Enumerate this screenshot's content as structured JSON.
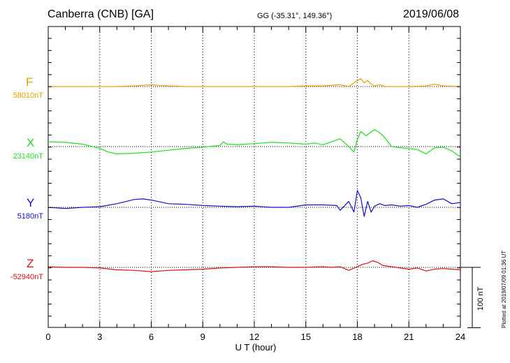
{
  "header": {
    "title": "Canberra (CNB)  [GA]",
    "coords": "GG (-35.31°, 149.36°)",
    "date": "2019/06/08"
  },
  "scale_label": "100 nT",
  "plotted_note": "Plotted at 2019/07/09 01:36 UT",
  "colors": {
    "F": "#e6a300",
    "X": "#22dd22",
    "Y": "#1010cc",
    "Z": "#dd1111"
  },
  "chart_data": {
    "type": "line",
    "xlabel": "U T (hour)",
    "xlim": [
      0,
      24
    ],
    "x_ticks": [
      "0",
      "3",
      "6",
      "9",
      "12",
      "15",
      "18",
      "21",
      "24"
    ],
    "grid": true,
    "components": [
      {
        "name": "F",
        "baseline_label": "58010nT",
        "color": "#e6a300",
        "x": [
          0,
          1,
          2,
          3,
          4,
          5,
          5.5,
          6,
          6.5,
          7,
          8,
          9,
          10,
          11,
          12,
          13,
          14,
          15,
          16,
          17,
          17.5,
          18,
          18.2,
          18.4,
          18.6,
          18.8,
          19,
          19.3,
          19.6,
          20,
          21,
          22,
          22.5,
          23,
          24
        ],
        "values": [
          0,
          0,
          0,
          0,
          0,
          1,
          2,
          3,
          2,
          1,
          0,
          0,
          0,
          0,
          0,
          0,
          0,
          1,
          1,
          3,
          0,
          10,
          13,
          6,
          10,
          4,
          1,
          3,
          0,
          0,
          0,
          1,
          4,
          1,
          0
        ]
      },
      {
        "name": "X",
        "baseline_label": "23140nT",
        "color": "#22dd22",
        "x": [
          0,
          1,
          2,
          3,
          3.5,
          4,
          5,
          6,
          7,
          8,
          9,
          10,
          10.2,
          10.4,
          11,
          12,
          13,
          14,
          15,
          15.5,
          16,
          16.5,
          17,
          17.5,
          17.8,
          18,
          18.2,
          18.5,
          18.8,
          19,
          19.2,
          19.5,
          20,
          20.5,
          21,
          21.5,
          22,
          22.5,
          23,
          23.5,
          24
        ],
        "values": [
          8,
          7,
          4,
          -3,
          -9,
          -12,
          -11,
          -9,
          -6,
          -3,
          -1,
          2,
          8,
          4,
          3,
          5,
          7,
          6,
          4,
          6,
          3,
          8,
          13,
          0,
          -9,
          12,
          25,
          18,
          24,
          28,
          25,
          18,
          0,
          -2,
          -3,
          -5,
          -12,
          -2,
          -1,
          -7,
          -17
        ]
      },
      {
        "name": "Y",
        "baseline_label": "5180nT",
        "color": "#1010cc",
        "x": [
          0,
          1,
          2,
          3,
          4,
          5,
          5.5,
          6,
          7,
          8,
          9,
          10,
          11,
          12,
          13,
          14,
          15,
          16,
          16.8,
          17,
          17.5,
          17.8,
          18,
          18.2,
          18.4,
          18.6,
          18.8,
          19,
          19.3,
          19.6,
          20,
          20.5,
          21,
          21.5,
          22,
          22.5,
          23,
          23.5,
          24
        ],
        "values": [
          0,
          -2,
          0,
          1,
          6,
          13,
          14,
          12,
          6,
          5,
          3,
          2,
          1,
          2,
          0,
          0,
          4,
          4,
          3,
          -5,
          10,
          -8,
          28,
          16,
          -15,
          10,
          -8,
          2,
          6,
          3,
          4,
          2,
          3,
          0,
          5,
          12,
          14,
          6,
          8
        ]
      },
      {
        "name": "Z",
        "baseline_label": "-52940nT",
        "color": "#dd1111",
        "x": [
          0,
          1,
          2,
          3,
          4,
          5,
          6,
          7,
          8,
          9,
          10,
          11,
          12,
          13,
          14,
          15,
          16,
          16.5,
          17,
          17.5,
          18,
          18.3,
          18.6,
          18.9,
          19.2,
          19.5,
          20,
          21,
          21.5,
          22,
          22.5,
          23,
          24
        ],
        "values": [
          1,
          0,
          0,
          -1,
          -4,
          -5,
          -7,
          -5,
          -4,
          -3,
          -1,
          0,
          1,
          1,
          0,
          0,
          1,
          0,
          1,
          -5,
          1,
          5,
          7,
          11,
          8,
          3,
          1,
          -3,
          -1,
          -6,
          -3,
          -2,
          -4
        ]
      }
    ],
    "scale_nT": 100
  }
}
